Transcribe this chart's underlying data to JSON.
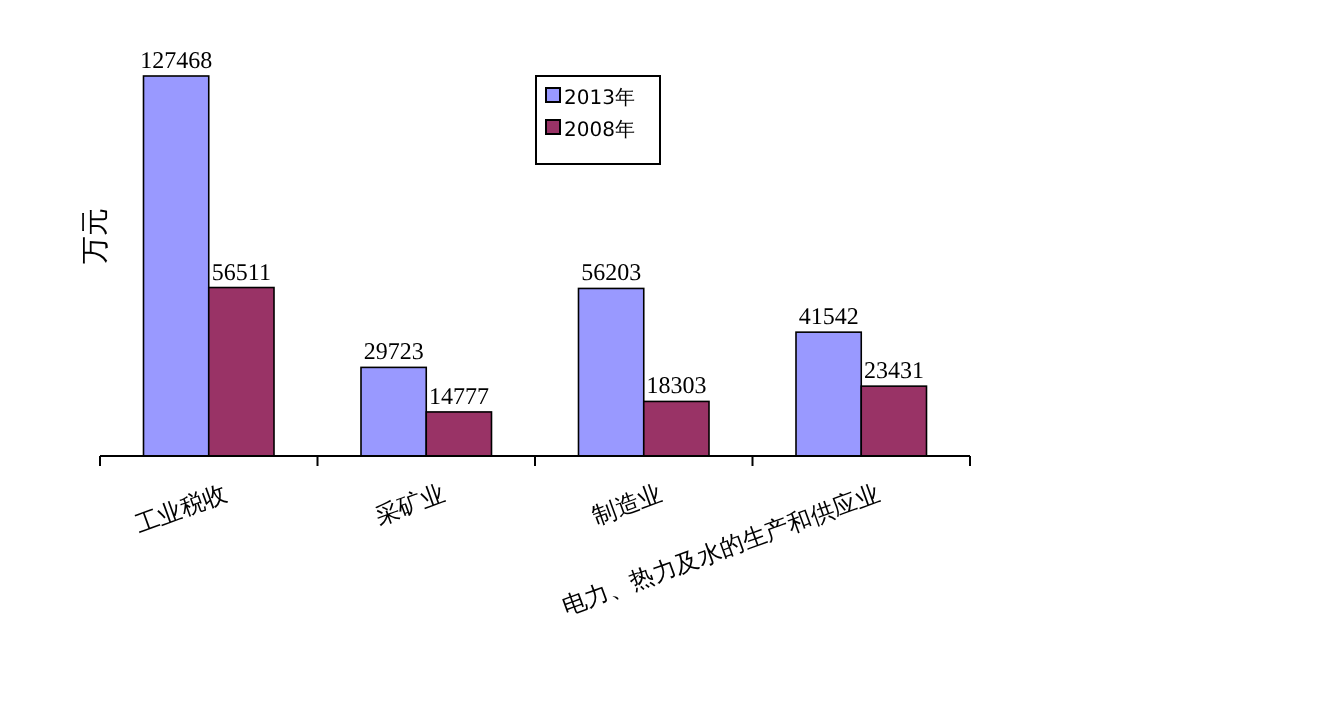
{
  "chart_data": {
    "type": "bar",
    "ylabel": "万元",
    "categories": [
      "工业税收",
      "采矿业",
      "制造业",
      "电力、热力及水的生产和供应业"
    ],
    "series": [
      {
        "name": "2013年",
        "color": "#9999ff",
        "values": [
          127468,
          29723,
          56203,
          41542
        ]
      },
      {
        "name": "2008年",
        "color": "#993366",
        "values": [
          56511,
          14777,
          18303,
          23431
        ]
      }
    ],
    "data_labels": true,
    "legend": "top"
  }
}
